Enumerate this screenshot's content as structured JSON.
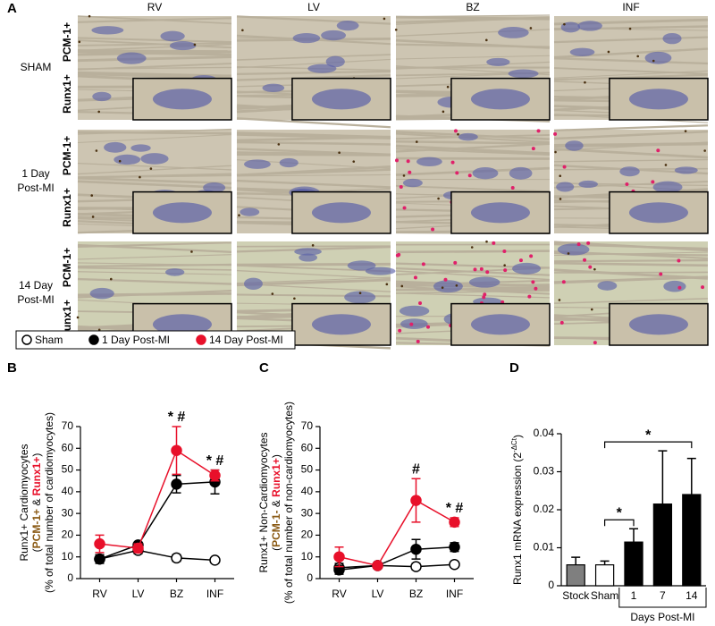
{
  "panel_a": {
    "panel": "A",
    "columns": [
      "RV",
      "LV",
      "BZ",
      "INF"
    ],
    "rows": [
      [
        "SHAM"
      ],
      [
        "1 Day",
        "Post-MI"
      ],
      [
        "14 Day",
        "Post-MI"
      ]
    ],
    "markers": [
      {
        "text": "PCM-1+",
        "color": "#8a5a14"
      },
      {
        "text": "Runx1+",
        "color": "#e8102a"
      }
    ]
  },
  "chart_data": [
    {
      "type": "line",
      "panel": "B",
      "ylabel": [
        "Runx1+ Cardiomyocytes",
        [
          {
            "text": "(",
            "color": "#000000"
          },
          {
            "text": "PCM-1+",
            "color": "#8a5a14"
          },
          {
            "text": " & ",
            "color": "#000000"
          },
          {
            "text": "Runx1+",
            "color": "#e8102a"
          },
          {
            "text": ")",
            "color": "#000000"
          }
        ],
        "(% of total number of cardiomyocytes)"
      ],
      "categories": [
        "RV",
        "LV",
        "BZ",
        "INF"
      ],
      "series": [
        {
          "name": "Sham",
          "color": "#000000",
          "fill": "#ffffff",
          "values": [
            9,
            13,
            9.5,
            8.5
          ],
          "errors": [
            1,
            1.5,
            1.5,
            1
          ]
        },
        {
          "name": "1 Day Post-MI",
          "color": "#000000",
          "fill": "#000000",
          "values": [
            9,
            15.5,
            43.5,
            44.5
          ],
          "errors": [
            2,
            1,
            4,
            5.5
          ]
        },
        {
          "name": "14 Day Post-MI",
          "color": "#e8102a",
          "fill": "#e8102a",
          "values": [
            16,
            14,
            59,
            47.5
          ],
          "errors": [
            4,
            2,
            11,
            2.5
          ]
        }
      ],
      "annotations": [
        {
          "text": "* #",
          "category": "BZ"
        },
        {
          "text": "* #",
          "category": "INF"
        }
      ],
      "ylim": [
        0,
        70
      ],
      "yticks": [
        0,
        10,
        20,
        30,
        40,
        50,
        60,
        70
      ]
    },
    {
      "type": "line",
      "panel": "C",
      "ylabel": [
        "Runx1+ Non-Cardiomyocytes",
        [
          {
            "text": "(",
            "color": "#000000"
          },
          {
            "text": "PCM-1-",
            "color": "#8a5a14"
          },
          {
            "text": " & ",
            "color": "#000000"
          },
          {
            "text": "Runx1+",
            "color": "#e8102a"
          },
          {
            "text": ")",
            "color": "#000000"
          }
        ],
        "(% of total number of non-cardiomyocytes)"
      ],
      "categories": [
        "RV",
        "LV",
        "BZ",
        "INF"
      ],
      "series": [
        {
          "name": "Sham",
          "color": "#000000",
          "fill": "#ffffff",
          "values": [
            5,
            6,
            5.5,
            6.5
          ],
          "errors": [
            2,
            1,
            1.5,
            1
          ]
        },
        {
          "name": "1 Day Post-MI",
          "color": "#000000",
          "fill": "#000000",
          "values": [
            4,
            6,
            13.5,
            14.5
          ],
          "errors": [
            2,
            1,
            4.5,
            2
          ]
        },
        {
          "name": "14 Day Post-MI",
          "color": "#e8102a",
          "fill": "#e8102a",
          "values": [
            10,
            6,
            36,
            26
          ],
          "errors": [
            4.5,
            1,
            10,
            2
          ]
        }
      ],
      "annotations": [
        {
          "text": "#",
          "category": "BZ"
        },
        {
          "text": "* #",
          "category": "INF"
        }
      ],
      "ylim": [
        0,
        70
      ],
      "yticks": [
        0,
        10,
        20,
        30,
        40,
        50,
        60,
        70
      ]
    },
    {
      "type": "bar",
      "panel": "D",
      "ylabel": [
        {
          "text": "Runx1 mRNA expression (2"
        },
        {
          "text": "-ΔCt",
          "sup": true
        },
        {
          "text": ")"
        }
      ],
      "xlabel": "Days Post-MI",
      "categories": [
        "Stock",
        "Sham",
        "1",
        "7",
        "14"
      ],
      "values": [
        0.0055,
        0.0055,
        0.0115,
        0.0215,
        0.024
      ],
      "errors": [
        0.002,
        0.001,
        0.0035,
        0.014,
        0.0095
      ],
      "colors": [
        "#7f7f7f",
        "#ffffff",
        "#000000",
        "#000000",
        "#000000"
      ],
      "brackets": [
        {
          "text": "*",
          "from": "Sham",
          "to": "1"
        },
        {
          "text": "*",
          "from": "Sham",
          "to": "14"
        }
      ],
      "ylim": [
        0,
        0.04
      ],
      "yticks": [
        0,
        0.01,
        0.02,
        0.03,
        0.04
      ]
    }
  ]
}
